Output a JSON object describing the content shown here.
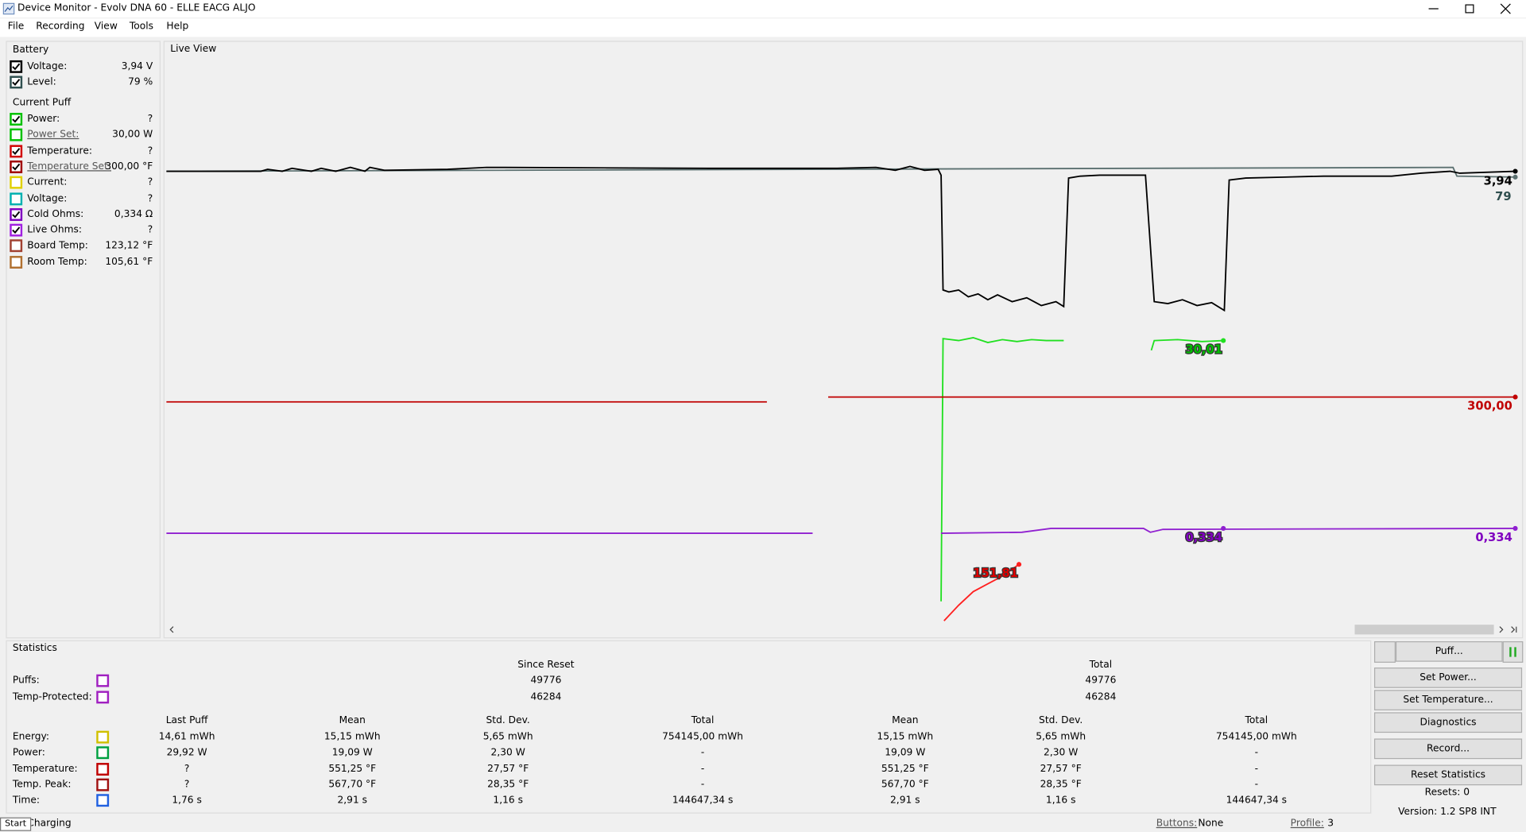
{
  "window": {
    "title": "Device Monitor - Evolv DNA 60 - ELLE EACG ALJO"
  },
  "menu": [
    "File",
    "Recording",
    "View",
    "Tools",
    "Help"
  ],
  "battery": {
    "title": "Battery",
    "rows": [
      {
        "label": "Voltage:",
        "value": "3,94 V",
        "checked": true,
        "color": "#000000"
      },
      {
        "label": "Level:",
        "value": "79 %",
        "checked": true,
        "color": "#2f4f4f"
      }
    ]
  },
  "current_puff": {
    "title": "Current Puff",
    "rows": [
      {
        "label": "Power:",
        "value": "?",
        "checked": true,
        "color": "#00c000"
      },
      {
        "label": "Power Set:",
        "value": "30,00 W",
        "checked": false,
        "color": "#00c000",
        "link": true
      },
      {
        "label": "Temperature:",
        "value": "?",
        "checked": true,
        "color": "#d00000"
      },
      {
        "label": "Temperature Set:",
        "value": "300,00 °F",
        "checked": true,
        "color": "#a00000",
        "link": true
      },
      {
        "label": "Current:",
        "value": "?",
        "checked": false,
        "color": "#e0d000"
      },
      {
        "label": "Voltage:",
        "value": "?",
        "checked": false,
        "color": "#00b0b0"
      },
      {
        "label": "Cold Ohms:",
        "value": "0,334 Ω",
        "checked": true,
        "color": "#8000c0"
      },
      {
        "label": "Live Ohms:",
        "value": "?",
        "checked": true,
        "color": "#a020e0"
      },
      {
        "label": "Board Temp:",
        "value": "123,12 °F",
        "checked": false,
        "color": "#a04030"
      },
      {
        "label": "Room Temp:",
        "value": "105,61 °F",
        "checked": false,
        "color": "#b07030"
      }
    ]
  },
  "live_view": {
    "title": "Live View",
    "labels": [
      {
        "text": "3,94",
        "color": "#000000"
      },
      {
        "text": "79",
        "color": "#2f4f4f"
      },
      {
        "text": "30,01",
        "color": "#00c000"
      },
      {
        "text": "300,00",
        "color": "#c00000"
      },
      {
        "text": "0,334",
        "color": "#8000c0"
      },
      {
        "text": "0,334",
        "color": "#8000c0"
      },
      {
        "text": "151,81",
        "color": "#e00000"
      }
    ]
  },
  "statistics": {
    "title": "Statistics",
    "group_headers": [
      "Since Reset",
      "Total"
    ],
    "counts": [
      {
        "label": "Puffs:",
        "color": "#a020c0",
        "values": [
          "49776",
          "49776"
        ]
      },
      {
        "label": "Temp-Protected:",
        "color": "#a020c0",
        "values": [
          "46284",
          "46284"
        ]
      }
    ],
    "columns": [
      "Last Puff",
      "Mean",
      "Std. Dev.",
      "Total",
      "Mean",
      "Std. Dev.",
      "Total"
    ],
    "rows": [
      {
        "label": "Energy:",
        "color": "#d0c000",
        "values": [
          "14,61 mWh",
          "15,15 mWh",
          "5,65 mWh",
          "754145,00 mWh",
          "15,15 mWh",
          "5,65 mWh",
          "754145,00 mWh"
        ]
      },
      {
        "label": "Power:",
        "color": "#00a040",
        "values": [
          "29,92 W",
          "19,09 W",
          "2,30 W",
          "-",
          "19,09 W",
          "2,30 W",
          "-"
        ]
      },
      {
        "label": "Temperature:",
        "color": "#c00000",
        "values": [
          "?",
          "551,25 °F",
          "27,57 °F",
          "-",
          "551,25 °F",
          "27,57 °F",
          "-"
        ]
      },
      {
        "label": "Temp. Peak:",
        "color": "#a01010",
        "values": [
          "?",
          "567,70 °F",
          "28,35 °F",
          "-",
          "567,70 °F",
          "28,35 °F",
          "-"
        ]
      },
      {
        "label": "Time:",
        "color": "#2060e0",
        "values": [
          "1,76 s",
          "2,91 s",
          "1,16 s",
          "144647,34 s",
          "2,91 s",
          "1,16 s",
          "144647,34 s"
        ]
      }
    ]
  },
  "side": {
    "buttons": [
      "Puff...",
      "Set Power...",
      "Set Temperature...",
      "Diagnostics",
      "Record...",
      "Reset Statistics"
    ],
    "resets": "Resets: 0",
    "version": "Version: 1.2 SP8 INT"
  },
  "status": {
    "start": "Start",
    "charging": "Charging",
    "buttons_label": "Buttons:",
    "buttons_value": "None",
    "profile_label": "Profile:",
    "profile_value": "3"
  }
}
